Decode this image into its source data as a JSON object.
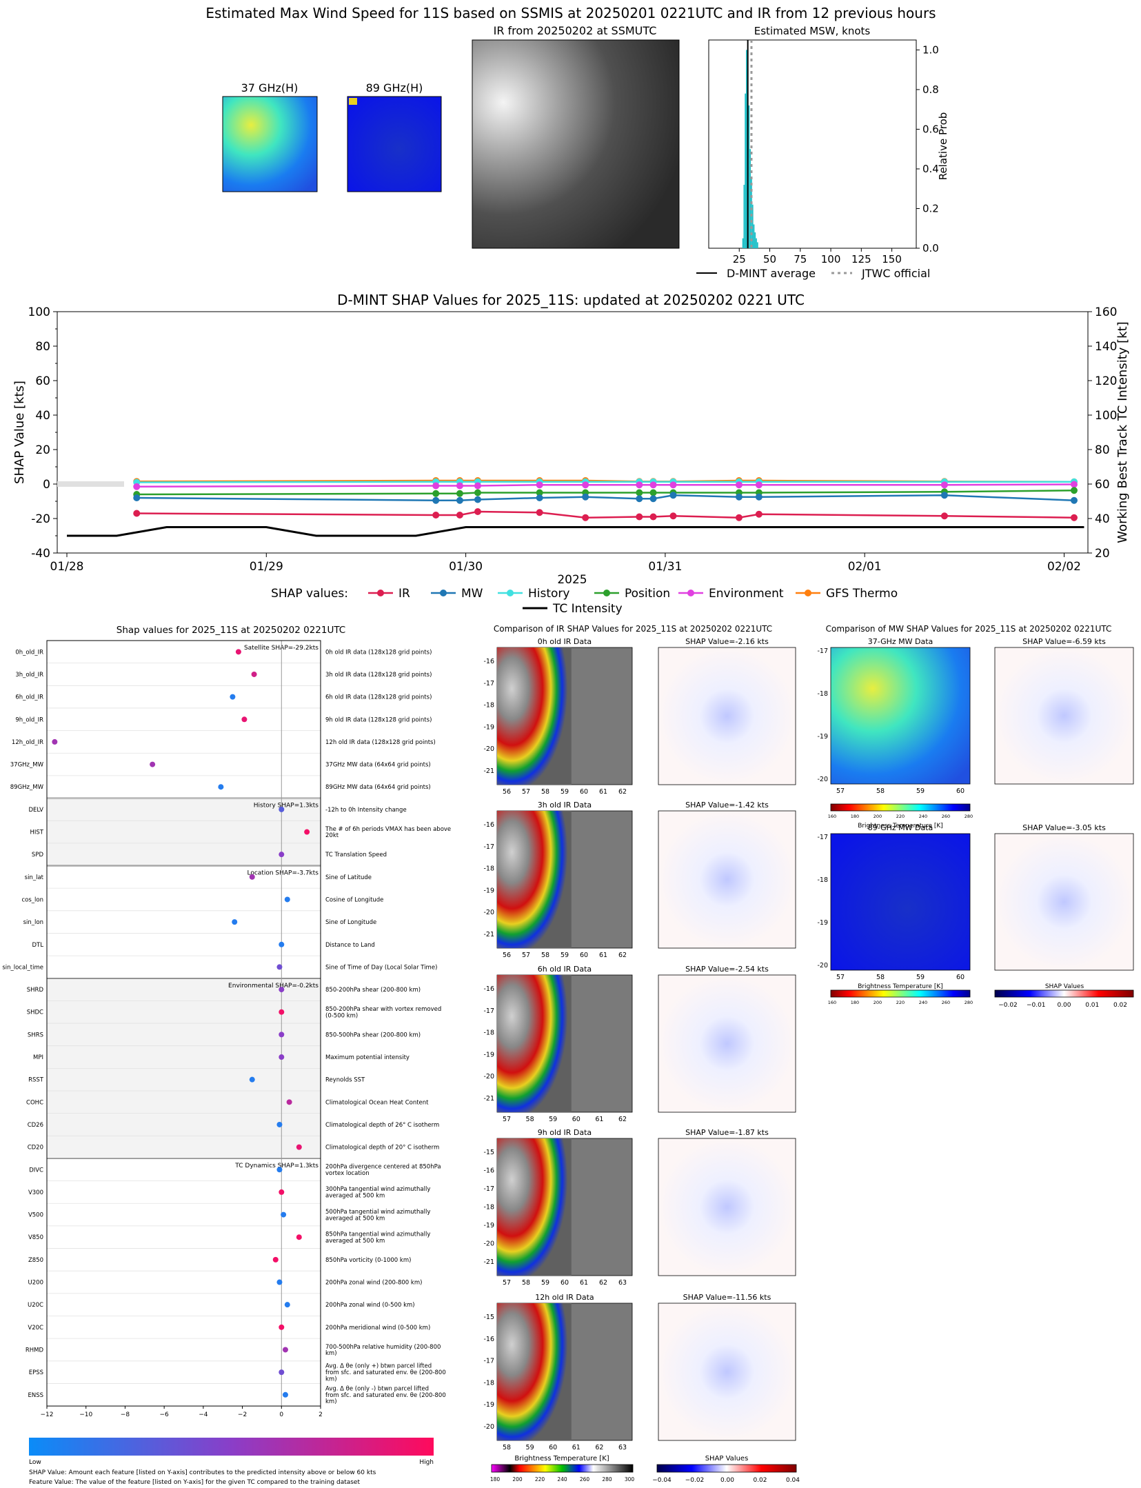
{
  "page_title": "Estimated Max Wind Speed for 11S based on SSMIS at 20250201 0221UTC and IR from 12 previous hours",
  "top_panels": {
    "mw37_title": "37 GHz(H)",
    "mw89_title": "89 GHz(H)",
    "ir_title": "IR from 20250202 at  SSMUTC"
  },
  "colors": {
    "ir": "#dc1e50",
    "mw": "#1f77b4",
    "history": "#40e0e0",
    "position": "#2ca02c",
    "environment": "#e040e0",
    "gfs": "#ff7f0e",
    "intensity": "#000000",
    "hist_bar": "#20c0c8"
  },
  "chart_data": [
    {
      "id": "msw_hist",
      "type": "bar",
      "title": "Estimated MSW, knots",
      "ylabel": "Relative Prob",
      "x_ticks": [
        25,
        50,
        75,
        100,
        125,
        150
      ],
      "y_ticks": [
        "0.0",
        "0.2",
        "0.4",
        "0.6",
        "0.8",
        "1.0"
      ],
      "xlim": [
        0,
        170
      ],
      "ylim": [
        0,
        1.05
      ],
      "bins": [
        {
          "x": 28,
          "y": 0.05
        },
        {
          "x": 29,
          "y": 0.32
        },
        {
          "x": 30,
          "y": 0.78
        },
        {
          "x": 31,
          "y": 1.0
        },
        {
          "x": 32,
          "y": 0.9
        },
        {
          "x": 33,
          "y": 0.72
        },
        {
          "x": 34,
          "y": 0.5
        },
        {
          "x": 35,
          "y": 0.36
        },
        {
          "x": 36,
          "y": 0.22
        },
        {
          "x": 37,
          "y": 0.12
        },
        {
          "x": 38,
          "y": 0.08
        },
        {
          "x": 39,
          "y": 0.05
        },
        {
          "x": 40,
          "y": 0.03
        }
      ],
      "dmint_average": 32,
      "jtwc_official": 35,
      "legend": [
        "D-MINT average",
        "JTWC official"
      ]
    },
    {
      "id": "shap_timeseries",
      "type": "line",
      "title": "D-MINT SHAP Values for 2025_11S: updated at 20250202 0221 UTC",
      "xlabel": "2025",
      "ylabel": "SHAP Value [kts]",
      "ylabel_right": "Working Best Track TC Intensity [kt]",
      "x_tick_labels": [
        "01/28",
        "01/29",
        "01/30",
        "01/31",
        "02/01",
        "02/02"
      ],
      "y_ticks": [
        -40,
        -20,
        0,
        20,
        40,
        60,
        80,
        100
      ],
      "y2_ticks": [
        20,
        40,
        60,
        80,
        100,
        120,
        140,
        160
      ],
      "ylim": [
        -40,
        100
      ],
      "y2lim": [
        20,
        160
      ],
      "legend_title": "SHAP values:",
      "x_days": [
        0.35,
        1.85,
        1.97,
        2.06,
        2.37,
        2.6,
        2.87,
        2.94,
        3.04,
        3.37,
        3.47,
        4.4,
        5.05
      ],
      "series": [
        {
          "name": "IR",
          "values": [
            -17,
            -18,
            -18,
            -16,
            -16.5,
            -19.5,
            -19,
            -19,
            -18.5,
            -19.5,
            -17.5,
            -18.5,
            -19.5
          ]
        },
        {
          "name": "MW",
          "values": [
            -8,
            -9.5,
            -9.5,
            -9,
            -8,
            -7.5,
            -8.5,
            -8.5,
            -6.5,
            -7.5,
            -7.5,
            -6.5,
            -9.5
          ]
        },
        {
          "name": "History",
          "values": [
            1,
            1.3,
            1.3,
            1.3,
            1.3,
            1.3,
            1.3,
            1.3,
            1.3,
            1.3,
            1.3,
            1.3,
            1.3
          ]
        },
        {
          "name": "Position",
          "values": [
            -6,
            -5.5,
            -5.5,
            -5,
            -5,
            -5,
            -5,
            -5,
            -5,
            -5,
            -5,
            -4.5,
            -3.7
          ]
        },
        {
          "name": "Environment",
          "values": [
            -1.5,
            -1,
            -1,
            -1,
            -0.5,
            -0.5,
            -0.5,
            -0.5,
            -0.5,
            -0.5,
            -0.5,
            -0.5,
            -0.2
          ]
        },
        {
          "name": "GFS Thermo",
          "values": [
            1.5,
            2,
            2,
            2,
            2,
            2,
            1.5,
            1.5,
            1.5,
            2,
            2,
            1.5,
            1.3
          ]
        }
      ],
      "intensity": {
        "name": "TC Intensity",
        "x_days": [
          0,
          0.25,
          0.5,
          1.0,
          1.25,
          1.75,
          2.0,
          5.1
        ],
        "values": [
          30,
          30,
          35,
          35,
          30,
          30,
          35,
          35
        ]
      }
    },
    {
      "id": "shap_features",
      "type": "scatter",
      "title": "Shap values for 2025_11S at 20250202 0221UTC",
      "xlabel": "SHAP Value [kts]",
      "x_ticks": [
        -12,
        -10,
        -8,
        -6,
        -4,
        -2,
        0,
        2
      ],
      "xlim": [
        -12,
        2
      ],
      "colorbar_low": "Low",
      "colorbar_high": "High",
      "groups": [
        {
          "label": "Satellite SHAP=-29.2kts",
          "rows": 7
        },
        {
          "label": "History SHAP=1.3kts",
          "rows": 3
        },
        {
          "label": "Location SHAP=-3.7kts",
          "rows": 5
        },
        {
          "label": "Environmental SHAP=-0.2kts",
          "rows": 8
        },
        {
          "label": "TC Dynamics SHAP=1.3kts",
          "rows": 11
        }
      ],
      "features": [
        {
          "name": "0h_old_IR",
          "desc": "0h old IR data (128x128 grid points)",
          "shap": -2.2,
          "c": 0.9
        },
        {
          "name": "3h_old_IR",
          "desc": "3h old IR data (128x128 grid points)",
          "shap": -1.4,
          "c": 0.8
        },
        {
          "name": "6h_old_IR",
          "desc": "6h old IR data (128x128 grid points)",
          "shap": -2.5,
          "c": 0.1
        },
        {
          "name": "9h_old_IR",
          "desc": "9h old IR data (128x128 grid points)",
          "shap": -1.9,
          "c": 0.9
        },
        {
          "name": "12h_old_IR",
          "desc": "12h old IR data (128x128 grid points)",
          "shap": -11.6,
          "c": 0.6
        },
        {
          "name": "37GHz_MW",
          "desc": "37GHz MW data (64x64 grid points)",
          "shap": -6.6,
          "c": 0.6
        },
        {
          "name": "89GHz_MW",
          "desc": "89GHz MW data (64x64 grid points)",
          "shap": -3.1,
          "c": 0.1
        },
        {
          "name": "DELV",
          "desc": "-12h to 0h Intensity change",
          "shap": 0.0,
          "c": 0.3
        },
        {
          "name": "HIST",
          "desc": "The # of 6h periods VMAX has been above 20kt",
          "shap": 1.3,
          "c": 0.95
        },
        {
          "name": "SPD",
          "desc": "TC Translation Speed",
          "shap": 0.0,
          "c": 0.5
        },
        {
          "name": "sin_lat",
          "desc": "Sine of Latitude",
          "shap": -1.5,
          "c": 0.6
        },
        {
          "name": "cos_lon",
          "desc": "Cosine of Longitude",
          "shap": 0.3,
          "c": 0.1
        },
        {
          "name": "sin_lon",
          "desc": "Sine of Longitude",
          "shap": -2.4,
          "c": 0.1
        },
        {
          "name": "DTL",
          "desc": "Distance to Land",
          "shap": 0.0,
          "c": 0.1
        },
        {
          "name": "sin_local_time",
          "desc": "Sine of Time of Day (Local Solar Time)",
          "shap": -0.1,
          "c": 0.4
        },
        {
          "name": "SHRD",
          "desc": "850-200hPa shear (200-800 km)",
          "shap": 0.0,
          "c": 0.5
        },
        {
          "name": "SHDC",
          "desc": "850-200hPa shear with vortex removed (0-500 km)",
          "shap": 0.0,
          "c": 0.95
        },
        {
          "name": "SHRS",
          "desc": "850-500hPa shear (200-800 km)",
          "shap": 0.0,
          "c": 0.5
        },
        {
          "name": "MPI",
          "desc": "Maximum potential intensity",
          "shap": 0.0,
          "c": 0.5
        },
        {
          "name": "RSST",
          "desc": "Reynolds SST",
          "shap": -1.5,
          "c": 0.1
        },
        {
          "name": "COHC",
          "desc": "Climatological Ocean Heat Content",
          "shap": 0.4,
          "c": 0.7
        },
        {
          "name": "CD26",
          "desc": "Climatological depth of 26° C isotherm",
          "shap": -0.1,
          "c": 0.1
        },
        {
          "name": "CD20",
          "desc": "Climatological depth of 20° C isotherm",
          "shap": 0.9,
          "c": 0.9
        },
        {
          "name": "DIVC",
          "desc": "200hPa divergence centered at 850hPa vortex location",
          "shap": -0.1,
          "c": 0.1
        },
        {
          "name": "V300",
          "desc": "300hPa tangential wind azimuthally averaged at 500 km",
          "shap": 0.0,
          "c": 0.95
        },
        {
          "name": "V500",
          "desc": "500hPa tangential wind azimuthally averaged at 500 km",
          "shap": 0.1,
          "c": 0.1
        },
        {
          "name": "V850",
          "desc": "850hPa tangential wind azimuthally averaged at 500 km",
          "shap": 0.9,
          "c": 0.95
        },
        {
          "name": "Z850",
          "desc": "850hPa vorticity (0-1000 km)",
          "shap": -0.3,
          "c": 0.95
        },
        {
          "name": "U200",
          "desc": "200hPa zonal wind (200-800 km)",
          "shap": -0.1,
          "c": 0.1
        },
        {
          "name": "U20C",
          "desc": "200hPa zonal wind (0-500 km)",
          "shap": 0.3,
          "c": 0.1
        },
        {
          "name": "V20C",
          "desc": "200hPa meridional wind (0-500 km)",
          "shap": 0.0,
          "c": 0.95
        },
        {
          "name": "RHMD",
          "desc": "700-500hPa relative humidity (200-800 km)",
          "shap": 0.2,
          "c": 0.6
        },
        {
          "name": "EPSS",
          "desc": "Avg. Δ θe (only +) btwn parcel lifted from sfc. and saturated env. θe (200-800 km)",
          "shap": 0.0,
          "c": 0.4
        },
        {
          "name": "ENSS",
          "desc": "Avg. Δ θe (only -) btwn parcel lifted from sfc. and saturated env. θe (200-800 km)",
          "shap": 0.2,
          "c": 0.1
        }
      ]
    },
    {
      "id": "ir_comparison",
      "type": "heatmap",
      "title": "Comparison of IR SHAP Values for 2025_11S at 20250202 0221UTC",
      "panels": [
        {
          "title": "0h old IR Data",
          "shap_title": "SHAP Value=-2.16 kts",
          "x_ticks": [
            "56",
            "57",
            "58",
            "59",
            "60",
            "61",
            "62"
          ],
          "y_ticks": [
            "-16",
            "-17",
            "-18",
            "-19",
            "-20",
            "-21"
          ]
        },
        {
          "title": "3h old IR Data",
          "shap_title": "SHAP Value=-1.42 kts",
          "x_ticks": [
            "56",
            "57",
            "58",
            "59",
            "60",
            "61",
            "62"
          ],
          "y_ticks": [
            "-16",
            "-17",
            "-18",
            "-19",
            "-20",
            "-21"
          ]
        },
        {
          "title": "6h old IR Data",
          "shap_title": "SHAP Value=-2.54 kts",
          "x_ticks": [
            "57",
            "58",
            "59",
            "60",
            "61",
            "62"
          ],
          "y_ticks": [
            "-16",
            "-17",
            "-18",
            "-19",
            "-20",
            "-21"
          ]
        },
        {
          "title": "9h old IR Data",
          "shap_title": "SHAP Value=-1.87 kts",
          "x_ticks": [
            "57",
            "58",
            "59",
            "60",
            "61",
            "62",
            "63"
          ],
          "y_ticks": [
            "-15",
            "-16",
            "-17",
            "-18",
            "-19",
            "-20",
            "-21"
          ]
        },
        {
          "title": "12h old IR Data",
          "shap_title": "SHAP Value=-11.56 kts",
          "x_ticks": [
            "58",
            "59",
            "60",
            "61",
            "62",
            "63"
          ],
          "y_ticks": [
            "-15",
            "-16",
            "-17",
            "-18",
            "-19",
            "-20"
          ]
        }
      ],
      "cbar_title": "Brightness Temperature [K]",
      "cbar_ticks": [
        "180",
        "200",
        "220",
        "240",
        "260",
        "280",
        "300"
      ],
      "shap_cbar_title": "SHAP Values",
      "shap_cbar_ticks": [
        "−0.04",
        "−0.02",
        "0.00",
        "0.02",
        "0.04"
      ]
    },
    {
      "id": "mw_comparison",
      "type": "heatmap",
      "title": "Comparison of MW SHAP Values for 2025_11S at 20250202 0221UTC",
      "panels": [
        {
          "title": "37-GHz MW Data",
          "shap_title": "SHAP Value=-6.59 kts",
          "x_ticks": [
            "57",
            "58",
            "59",
            "60"
          ],
          "y_ticks": [
            "-17",
            "-18",
            "-19",
            "-20"
          ]
        },
        {
          "title": "89-GHz MW Data",
          "shap_title": "SHAP Value=-3.05 kts",
          "x_ticks": [
            "57",
            "58",
            "59",
            "60"
          ],
          "y_ticks": [
            "-17",
            "-18",
            "-19",
            "-20"
          ]
        }
      ],
      "cbar_title": "Brightness Temperature [K]",
      "cbar_ticks": [
        "160",
        "180",
        "200",
        "220",
        "240",
        "260",
        "280"
      ],
      "shap_cbar_title": "SHAP Values",
      "shap_cbar_ticks": [
        "−0.02",
        "−0.01",
        "0.00",
        "0.01",
        "0.02"
      ]
    }
  ],
  "footnotes": {
    "shap_value": "SHAP Value: Amount each feature [listed on Y-axis] contributes to the predicted intensity above or below 60 kts",
    "feature_value": "Feature Value: The value of the feature [listed on Y-axis] for the given TC compared to the training dataset"
  }
}
